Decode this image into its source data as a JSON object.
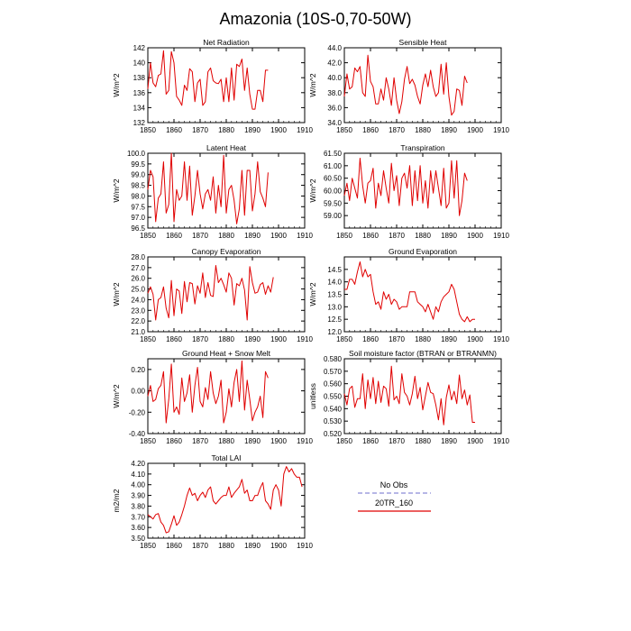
{
  "figure_title": "Amazonia (10S-0,70-50W)",
  "colors": {
    "model": "#e00000",
    "obs": "#8a8ad8",
    "axis": "#000000"
  },
  "legend": {
    "obs_label": "No Obs",
    "model_label": "20TR_160"
  },
  "chart_data": [
    {
      "type": "line",
      "title": "Net Radiation",
      "ylabel": "W/m^2",
      "xlim": [
        1850,
        1910
      ],
      "xticks": [
        "1850",
        "1860",
        "1870",
        "1880",
        "1890",
        "1900",
        "1910"
      ],
      "ylim": [
        132,
        142
      ],
      "yticks": [
        "132",
        "134",
        "136",
        "138",
        "140",
        "142"
      ],
      "series": [
        {
          "name": "20TR_160",
          "x_start": 1850,
          "values": [
            136.5,
            140,
            137.3,
            136.8,
            138.3,
            138.5,
            141.6,
            135.8,
            136.3,
            141.5,
            140,
            135.5,
            135,
            134.3,
            137,
            136.3,
            139.2,
            138.8,
            134.8,
            137.3,
            137.8,
            134.3,
            134.8,
            138.8,
            139.3,
            137.6,
            137.3,
            137.2,
            137.8,
            134.8,
            138,
            134.8,
            139.3,
            135,
            139.8,
            139.5,
            140.5,
            136.3,
            139.3,
            135.8,
            133.8,
            133.8,
            136.3,
            136.3,
            134.8,
            139,
            139
          ]
        }
      ]
    },
    {
      "type": "line",
      "title": "Sensible Heat",
      "ylabel": "W/m^2",
      "xlim": [
        1850,
        1910
      ],
      "xticks": [
        "1850",
        "1860",
        "1870",
        "1880",
        "1890",
        "1900",
        "1910"
      ],
      "ylim": [
        34,
        44
      ],
      "yticks": [
        "34.0",
        "36.0",
        "38.0",
        "40.0",
        "42.0",
        "44.0"
      ],
      "series": [
        {
          "name": "20TR_160",
          "x_start": 1850,
          "values": [
            37.5,
            40.5,
            38.5,
            38.8,
            41.3,
            40.8,
            41.5,
            38,
            37.5,
            43,
            39.5,
            38.8,
            36.5,
            36.5,
            38.5,
            37,
            40,
            38.5,
            36.3,
            40,
            37,
            35.2,
            36.8,
            39.8,
            41.5,
            39.2,
            39.8,
            39,
            37.5,
            36.5,
            39,
            40.5,
            38.8,
            41,
            38.8,
            37.5,
            38,
            41.8,
            37.8,
            42,
            37.5,
            35,
            35.5,
            38.5,
            38.3,
            36.3,
            40.2,
            39.3
          ]
        }
      ]
    },
    {
      "type": "line",
      "title": "Latent Heat",
      "ylabel": "W/m^2",
      "xlim": [
        1850,
        1910
      ],
      "xticks": [
        "1850",
        "1860",
        "1870",
        "1880",
        "1890",
        "1900",
        "1910"
      ],
      "ylim": [
        96.5,
        100
      ],
      "yticks": [
        "96.5",
        "97.0",
        "97.5",
        "98.0",
        "98.5",
        "99.0",
        "99.5",
        "100.0"
      ],
      "series": [
        {
          "name": "20TR_160",
          "x_start": 1850,
          "values": [
            98.3,
            99.2,
            98.9,
            96.8,
            97.9,
            98.1,
            99.6,
            97.2,
            97.6,
            100,
            96.8,
            98.3,
            97.8,
            98,
            99.6,
            97.8,
            99.4,
            97.1,
            98,
            99.2,
            98.1,
            97.4,
            98.1,
            98.3,
            97.8,
            98.9,
            97.2,
            98.5,
            97.5,
            99.9,
            97.2,
            98.3,
            98.5,
            97.8,
            96.7,
            97.4,
            99.2,
            97.1,
            99.2,
            99.2,
            97.3,
            98.1,
            99.6,
            98.2,
            97.9,
            97.5,
            99.1
          ]
        }
      ]
    },
    {
      "type": "line",
      "title": "Transpiration",
      "ylabel": "W/m^2",
      "xlim": [
        1850,
        1910
      ],
      "xticks": [
        "1850",
        "1860",
        "1870",
        "1880",
        "1890",
        "1900",
        "1910"
      ],
      "ylim": [
        58.5,
        61.5
      ],
      "yticks": [
        "59.00",
        "59.50",
        "60.00",
        "60.50",
        "61.00",
        "61.50"
      ],
      "series": [
        {
          "name": "20TR_160",
          "x_start": 1850,
          "values": [
            59.8,
            60.3,
            59.6,
            60.5,
            60.1,
            59.7,
            61.3,
            60.2,
            59.5,
            60.3,
            60.4,
            60.9,
            59.3,
            60.3,
            59.8,
            60.8,
            60.1,
            59.5,
            61.1,
            60,
            60.6,
            59.4,
            60.5,
            60.7,
            60.1,
            61,
            59.4,
            60.8,
            59.6,
            61,
            59.5,
            60.4,
            59.3,
            60.8,
            59.9,
            60.8,
            60.1,
            59.4,
            60.9,
            59.3,
            59.5,
            61.2,
            59.7,
            61.2,
            59,
            59.6,
            60.7,
            60.4
          ]
        }
      ]
    },
    {
      "type": "line",
      "title": "Canopy Evaporation",
      "ylabel": "W/m^2",
      "xlim": [
        1850,
        1910
      ],
      "xticks": [
        "1850",
        "1860",
        "1870",
        "1880",
        "1890",
        "1900",
        "1910"
      ],
      "ylim": [
        21,
        28
      ],
      "yticks": [
        "21.0",
        "22.0",
        "23.0",
        "24.0",
        "25.0",
        "26.0",
        "27.0",
        "28.0"
      ],
      "series": [
        {
          "name": "20TR_160",
          "x_start": 1850,
          "values": [
            24.6,
            25.2,
            24.5,
            22.1,
            24,
            24.2,
            25.2,
            23.2,
            22.3,
            25.8,
            22.5,
            25,
            24.8,
            22.7,
            25.7,
            23.8,
            25.6,
            25.5,
            23.6,
            25.3,
            24.6,
            26.5,
            24.2,
            25.6,
            24.4,
            24.3,
            27.2,
            25.6,
            26,
            25.4,
            24.7,
            26.5,
            26,
            23.5,
            25.5,
            25.3,
            26,
            24.9,
            22.1,
            27.1,
            25.6,
            24.6,
            24.7,
            25.4,
            25.6,
            24.5,
            25.3,
            24.7,
            26.1
          ]
        }
      ]
    },
    {
      "type": "line",
      "title": "Ground Evaporation",
      "ylabel": "W/m^2",
      "xlim": [
        1850,
        1910
      ],
      "xticks": [
        "1850",
        "1860",
        "1870",
        "1880",
        "1890",
        "1900",
        "1910"
      ],
      "ylim": [
        12,
        15
      ],
      "yticks": [
        "12.0",
        "12.5",
        "13.0",
        "13.5",
        "14.0",
        "14.5"
      ],
      "series": [
        {
          "name": "20TR_160",
          "x_start": 1850,
          "values": [
            13.7,
            13.7,
            14.1,
            14.1,
            13.9,
            14.4,
            14.8,
            14.2,
            14.5,
            14.2,
            14.3,
            13.6,
            13.1,
            13.2,
            12.9,
            13.6,
            13.3,
            13.5,
            13.1,
            13.3,
            13.2,
            12.9,
            13,
            13,
            13,
            13.6,
            13.6,
            13.6,
            13.2,
            13.1,
            13,
            12.8,
            13.1,
            12.8,
            12.5,
            13,
            12.8,
            13.2,
            13.4,
            13.5,
            13.6,
            13.9,
            13.7,
            13.2,
            12.7,
            12.5,
            12.4,
            12.6,
            12.4,
            12.5,
            12.5
          ]
        }
      ]
    },
    {
      "type": "line",
      "title": "Ground Heat + Snow Melt",
      "ylabel": "W/m^2",
      "xlim": [
        1850,
        1910
      ],
      "xticks": [
        "1850",
        "1860",
        "1870",
        "1880",
        "1890",
        "1900",
        "1910"
      ],
      "ylim": [
        -0.4,
        0.3
      ],
      "yticks": [
        "-0.40",
        "-0.20",
        "0.00",
        "0.20"
      ],
      "series": [
        {
          "name": "20TR_160",
          "x_start": 1850,
          "values": [
            -0.05,
            0.05,
            -0.1,
            -0.08,
            0.02,
            0.05,
            0.18,
            -0.3,
            -0.08,
            0.25,
            -0.2,
            -0.15,
            -0.22,
            0.12,
            -0.1,
            -0.02,
            0.15,
            -0.2,
            0.05,
            0.22,
            -0.1,
            -0.15,
            0.03,
            -0.08,
            0.18,
            -0.02,
            -0.12,
            -0.05,
            0.1,
            -0.3,
            -0.2,
            0.02,
            -0.15,
            0.08,
            0.2,
            -0.1,
            0.28,
            -0.18,
            0.1,
            -0.08,
            -0.28,
            -0.2,
            -0.15,
            -0.05,
            -0.25,
            0.18,
            0.12
          ]
        }
      ]
    },
    {
      "type": "line",
      "title": "Soil moisture factor (BTRAN or BTRANMN)",
      "ylabel": "unitless",
      "xlim": [
        1850,
        1910
      ],
      "xticks": [
        "1850",
        "1860",
        "1870",
        "1880",
        "1890",
        "1900",
        "1910"
      ],
      "ylim": [
        0.52,
        0.58
      ],
      "yticks": [
        "0.520",
        "0.530",
        "0.540",
        "0.550",
        "0.560",
        "0.570",
        "0.580"
      ],
      "series": [
        {
          "name": "20TR_160",
          "x_start": 1850,
          "values": [
            0.552,
            0.543,
            0.556,
            0.558,
            0.541,
            0.548,
            0.548,
            0.568,
            0.54,
            0.563,
            0.548,
            0.565,
            0.544,
            0.562,
            0.545,
            0.558,
            0.556,
            0.542,
            0.574,
            0.547,
            0.55,
            0.544,
            0.568,
            0.553,
            0.55,
            0.543,
            0.552,
            0.566,
            0.548,
            0.557,
            0.539,
            0.55,
            0.561,
            0.553,
            0.552,
            0.543,
            0.531,
            0.548,
            0.527,
            0.549,
            0.559,
            0.547,
            0.554,
            0.544,
            0.567,
            0.548,
            0.555,
            0.543,
            0.551,
            0.529,
            0.529
          ]
        }
      ]
    },
    {
      "type": "line",
      "title": "Total LAI",
      "ylabel": "m2/m2",
      "xlim": [
        1850,
        1910
      ],
      "xticks": [
        "1850",
        "1860",
        "1870",
        "1880",
        "1890",
        "1900",
        "1910"
      ],
      "ylim": [
        3.5,
        4.2
      ],
      "yticks": [
        "3.50",
        "3.60",
        "3.70",
        "3.80",
        "3.90",
        "4.00",
        "4.10",
        "4.20"
      ],
      "series": [
        {
          "name": "20TR_160",
          "x_start": 1850,
          "values": [
            3.72,
            3.7,
            3.68,
            3.72,
            3.73,
            3.65,
            3.62,
            3.55,
            3.56,
            3.63,
            3.71,
            3.62,
            3.65,
            3.72,
            3.8,
            3.9,
            3.97,
            3.9,
            3.92,
            3.85,
            3.9,
            3.93,
            3.88,
            3.95,
            3.98,
            3.85,
            3.82,
            3.85,
            3.88,
            3.9,
            3.9,
            3.98,
            3.88,
            3.92,
            3.95,
            3.98,
            4.05,
            3.92,
            3.95,
            3.85,
            3.85,
            3.9,
            3.9,
            3.97,
            4.02,
            3.85,
            3.82,
            3.77,
            3.95,
            4,
            3.95,
            3.8,
            4.1,
            4.17,
            4.12,
            4.15,
            4.1,
            4.07,
            4.07,
            3.98
          ]
        }
      ]
    }
  ]
}
